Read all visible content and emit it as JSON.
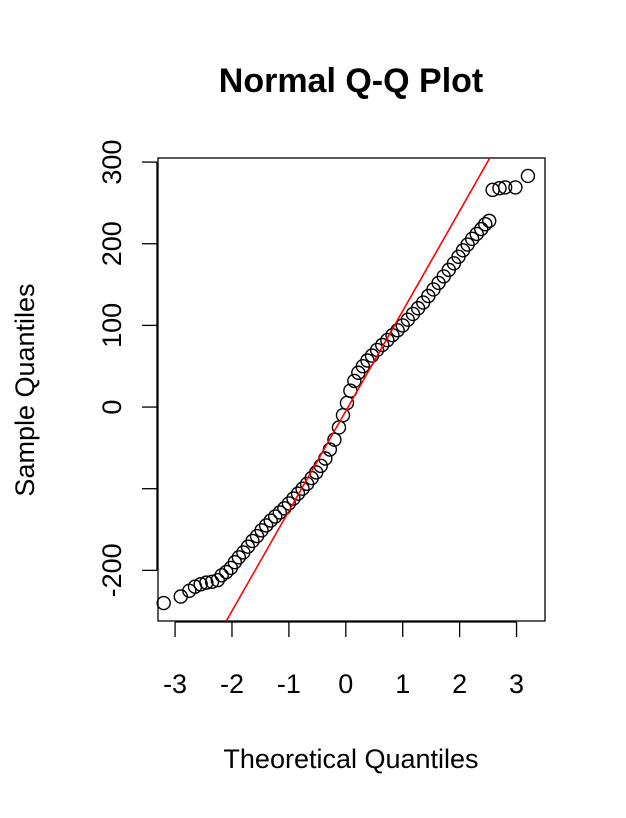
{
  "chart_data": {
    "type": "scatter",
    "title": "Normal Q-Q Plot",
    "xlabel": "Theoretical Quantiles",
    "ylabel": "Sample Quantiles",
    "xlim": [
      -3.3,
      3.5
    ],
    "ylim": [
      -262,
      305
    ],
    "x_ticks": [
      -3,
      -2,
      -1,
      0,
      1,
      2,
      3
    ],
    "x_tick_labels": [
      "-3",
      "-2",
      "-1",
      "0",
      "1",
      "2",
      "3"
    ],
    "y_ticks": [
      -200,
      -100,
      0,
      100,
      200,
      300
    ],
    "y_tick_labels": [
      "-200",
      "",
      "0",
      "100",
      "200",
      "300"
    ],
    "grid": false,
    "reference_line": {
      "color": "#ff0000",
      "points": [
        [
          -2.1,
          -262
        ],
        [
          2.53,
          305
        ]
      ]
    },
    "series": [
      {
        "marker": "open-circle",
        "color": "#000000",
        "points": [
          [
            -3.2,
            -240
          ],
          [
            -2.9,
            -232
          ],
          [
            -2.75,
            -225
          ],
          [
            -2.65,
            -220
          ],
          [
            -2.55,
            -217
          ],
          [
            -2.45,
            -215
          ],
          [
            -2.35,
            -214
          ],
          [
            -2.25,
            -212
          ],
          [
            -2.18,
            -206
          ],
          [
            -2.1,
            -202
          ],
          [
            -2.02,
            -197
          ],
          [
            -1.95,
            -190
          ],
          [
            -1.88,
            -184
          ],
          [
            -1.8,
            -178
          ],
          [
            -1.72,
            -171
          ],
          [
            -1.64,
            -164
          ],
          [
            -1.56,
            -158
          ],
          [
            -1.48,
            -151
          ],
          [
            -1.4,
            -145
          ],
          [
            -1.32,
            -139
          ],
          [
            -1.24,
            -134
          ],
          [
            -1.16,
            -129
          ],
          [
            -1.08,
            -124
          ],
          [
            -1.0,
            -118
          ],
          [
            -0.92,
            -112
          ],
          [
            -0.84,
            -106
          ],
          [
            -0.76,
            -100
          ],
          [
            -0.68,
            -94
          ],
          [
            -0.6,
            -87
          ],
          [
            -0.52,
            -80
          ],
          [
            -0.44,
            -72
          ],
          [
            -0.36,
            -63
          ],
          [
            -0.28,
            -52
          ],
          [
            -0.2,
            -40
          ],
          [
            -0.12,
            -25
          ],
          [
            -0.05,
            -10
          ],
          [
            0.02,
            5
          ],
          [
            0.08,
            20
          ],
          [
            0.15,
            32
          ],
          [
            0.22,
            42
          ],
          [
            0.3,
            50
          ],
          [
            0.38,
            57
          ],
          [
            0.46,
            63
          ],
          [
            0.55,
            70
          ],
          [
            0.64,
            76
          ],
          [
            0.73,
            82
          ],
          [
            0.82,
            88
          ],
          [
            0.91,
            94
          ],
          [
            1.0,
            100
          ],
          [
            1.09,
            107
          ],
          [
            1.18,
            114
          ],
          [
            1.27,
            121
          ],
          [
            1.36,
            128
          ],
          [
            1.45,
            136
          ],
          [
            1.54,
            144
          ],
          [
            1.63,
            152
          ],
          [
            1.72,
            160
          ],
          [
            1.81,
            168
          ],
          [
            1.9,
            176
          ],
          [
            1.98,
            184
          ],
          [
            2.06,
            192
          ],
          [
            2.14,
            199
          ],
          [
            2.22,
            206
          ],
          [
            2.3,
            212
          ],
          [
            2.38,
            218
          ],
          [
            2.45,
            224
          ],
          [
            2.52,
            228
          ],
          [
            2.58,
            266
          ],
          [
            2.7,
            268
          ],
          [
            2.8,
            269
          ],
          [
            2.98,
            269
          ],
          [
            3.2,
            283
          ]
        ]
      }
    ]
  }
}
